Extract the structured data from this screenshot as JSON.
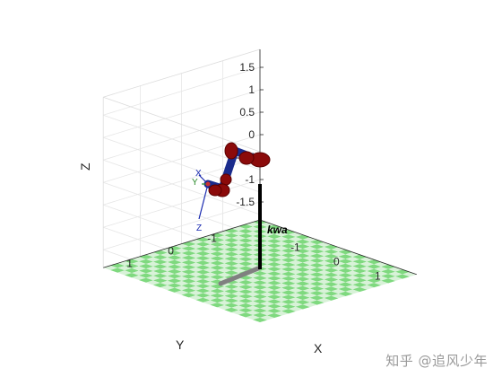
{
  "chart_data": {
    "type": "3d-plot",
    "title": "",
    "xlabel": "X",
    "ylabel": "Y",
    "zlabel": "Z",
    "x_ticks": [
      "-1",
      "0",
      "1"
    ],
    "y_ticks": [
      "-1",
      "0",
      "1"
    ],
    "z_ticks": [
      "1.5",
      "1",
      "0.5",
      "0",
      "-0.5",
      "-1",
      "-1.5"
    ],
    "xlim": [
      -1.9,
      1.9
    ],
    "ylim": [
      -1.9,
      1.9
    ],
    "zlim": [
      -1.9,
      1.9
    ],
    "grid": true,
    "floor": {
      "pattern": "checkerboard",
      "colors": [
        "#7fd97f",
        "#d8f2d8"
      ]
    },
    "robot": {
      "name": "kwa",
      "link_color": "#1a2b8c",
      "joint_color": "#8b0a0a",
      "pedestal_color": "#000000",
      "shadow_color": "#808080",
      "end_effector_frame": [
        "X",
        "Y",
        "Z"
      ]
    }
  },
  "watermark": "知乎 @追风少年"
}
